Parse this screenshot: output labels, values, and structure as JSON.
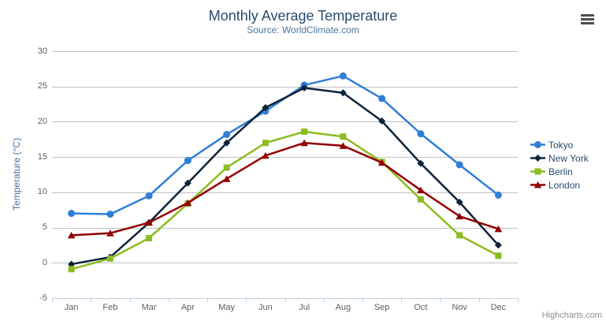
{
  "chart_data": {
    "type": "line",
    "title": "Monthly Average Temperature",
    "subtitle": "Source: WorldClimate.com",
    "xlabel": "",
    "ylabel": "Temperature (°C)",
    "categories": [
      "Jan",
      "Feb",
      "Mar",
      "Apr",
      "May",
      "Jun",
      "Jul",
      "Aug",
      "Sep",
      "Oct",
      "Nov",
      "Dec"
    ],
    "ylim": [
      -5,
      30
    ],
    "yticks": [
      30,
      25,
      20,
      15,
      10,
      5,
      0,
      -5
    ],
    "grid": "horizontal",
    "legend_position": "right",
    "series": [
      {
        "name": "Tokyo",
        "color": "#2f7ed8",
        "marker": "circle",
        "values": [
          7.0,
          6.9,
          9.5,
          14.5,
          18.2,
          21.5,
          25.2,
          26.5,
          23.3,
          18.3,
          13.9,
          9.6
        ]
      },
      {
        "name": "New York",
        "color": "#0d233a",
        "marker": "diamond",
        "values": [
          -0.2,
          0.8,
          5.7,
          11.3,
          17.0,
          22.0,
          24.8,
          24.1,
          20.1,
          14.1,
          8.6,
          2.5
        ]
      },
      {
        "name": "Berlin",
        "color": "#8bbc21",
        "marker": "square",
        "values": [
          -0.9,
          0.6,
          3.5,
          8.4,
          13.5,
          17.0,
          18.6,
          17.9,
          14.3,
          9.0,
          3.9,
          1.0
        ]
      },
      {
        "name": "London",
        "color": "#910000",
        "marker": "triangle",
        "values": [
          3.9,
          4.2,
          5.7,
          8.5,
          11.9,
          15.2,
          17.0,
          16.6,
          14.2,
          10.3,
          6.6,
          4.8
        ]
      }
    ]
  },
  "credits": {
    "label": "Highcharts.com"
  },
  "colors": {
    "title": "#274b6d",
    "subtitle": "#4d759e",
    "axis_title": "#4572a7",
    "axis_labels": "#606060",
    "legend_text": "#274b6d",
    "gridline": "#c0c0c0",
    "axis_line": "#c0d0e0",
    "credits": "#909090",
    "export_icon": "#4d4d4d",
    "background": "#ffffff"
  }
}
